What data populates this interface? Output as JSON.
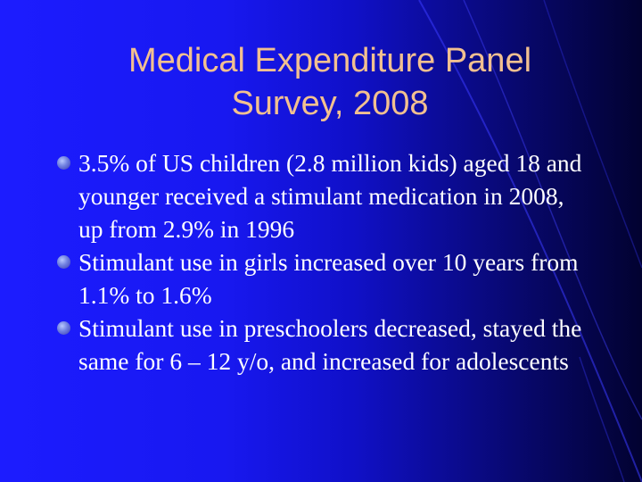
{
  "slide": {
    "title_lines": [
      "Medical Expenditure Panel",
      "Survey, 2008"
    ],
    "bullets": [
      "3.5% of US children (2.8 million kids) aged 18 and younger received a stimulant medication in 2008, up from 2.9% in 1996",
      "Stimulant use in girls increased over 10 years from 1.1% to 1.6%",
      "Stimulant use in preschoolers decreased, stayed the same for 6 – 12 y/o, and increased for adolescents"
    ],
    "colors": {
      "background_left": "#1c1cff",
      "background_right": "#020230",
      "title": "#f2c090",
      "text": "#ffffff",
      "bullet_marker": "#6f7fe0"
    },
    "bullet_icon": "sphere-bullet-icon"
  }
}
